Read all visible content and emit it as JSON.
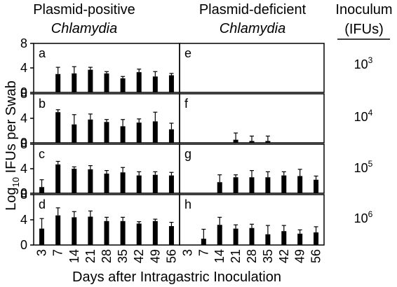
{
  "figure": {
    "col_left_title": "Plasmid-positive",
    "col_left_subtitle": "Chlamydia",
    "col_right_title": "Plasmid-deficient",
    "col_right_subtitle": "Chlamydia",
    "inoculum_title": "Inoculum",
    "inoculum_unit": "(IFUs)",
    "ylabel_prefix": "Log",
    "ylabel_sub": "10",
    "ylabel_suffix": " IFUs per Swab",
    "xlabel": "Days after Intragastric Inoculation"
  },
  "inocula": [
    {
      "base": "10",
      "exp": "3"
    },
    {
      "base": "10",
      "exp": "4"
    },
    {
      "base": "10",
      "exp": "5"
    },
    {
      "base": "10",
      "exp": "6"
    }
  ],
  "chart_data": {
    "type": "bar",
    "categories": [
      "3",
      "7",
      "14",
      "21",
      "28",
      "35",
      "42",
      "49",
      "56"
    ],
    "ylim": [
      0,
      8
    ],
    "yticks": [
      "0",
      "4",
      "8"
    ],
    "panels": [
      {
        "label": "a",
        "values": [
          0,
          3.0,
          3.1,
          3.7,
          3.1,
          2.3,
          3.3,
          2.6,
          2.8
        ],
        "errors": [
          0,
          1.1,
          1.1,
          0.4,
          0.3,
          0.3,
          0.5,
          0.8,
          0.3
        ]
      },
      {
        "label": "b",
        "values": [
          0,
          5.0,
          3.0,
          3.8,
          3.4,
          2.7,
          3.3,
          3.5,
          2.2
        ],
        "errors": [
          0,
          0.4,
          1.6,
          0.9,
          0.4,
          1.1,
          0.6,
          1.5,
          1.0
        ]
      },
      {
        "label": "c",
        "values": [
          1.0,
          4.7,
          4.0,
          3.9,
          3.2,
          3.4,
          2.9,
          3.0,
          2.9
        ],
        "errors": [
          1.2,
          0.5,
          0.3,
          0.6,
          0.5,
          0.8,
          0.6,
          0.5,
          0.5
        ]
      },
      {
        "label": "d",
        "values": [
          2.6,
          4.7,
          4.4,
          4.5,
          3.8,
          3.8,
          3.4,
          3.8,
          3.0
        ],
        "errors": [
          1.6,
          1.2,
          0.9,
          0.9,
          0.6,
          0.6,
          0.3,
          0.3,
          0.6
        ]
      },
      {
        "label": "e",
        "values": [
          0,
          0,
          0,
          0,
          0,
          0,
          0,
          0,
          0
        ],
        "errors": [
          0,
          0,
          0,
          0,
          0,
          0,
          0,
          0,
          0
        ]
      },
      {
        "label": "f",
        "values": [
          0,
          0,
          0,
          0.5,
          0.3,
          0.3,
          0,
          0,
          0
        ],
        "errors": [
          0,
          0,
          0,
          1.1,
          0.8,
          0.8,
          0,
          0,
          0
        ]
      },
      {
        "label": "g",
        "values": [
          0,
          0,
          1.8,
          2.6,
          2.6,
          2.6,
          2.9,
          2.8,
          2.2
        ],
        "errors": [
          0,
          0,
          1.2,
          0.4,
          1.1,
          0.9,
          0.6,
          1.1,
          0.6
        ]
      },
      {
        "label": "h",
        "values": [
          0,
          1.0,
          3.2,
          2.6,
          2.7,
          1.7,
          2.2,
          1.8,
          2.0
        ],
        "errors": [
          0,
          1.5,
          1.2,
          0.6,
          0.6,
          1.4,
          0.9,
          0.6,
          0.9
        ]
      }
    ]
  }
}
